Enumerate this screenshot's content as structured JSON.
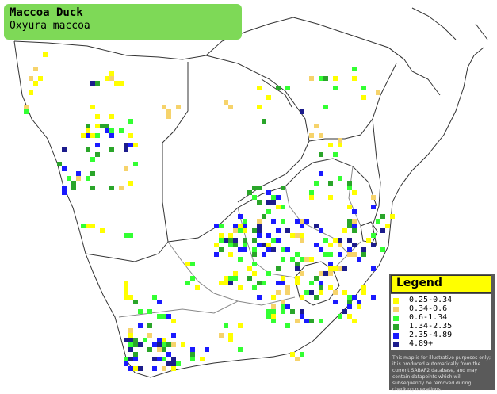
{
  "title": {
    "common_name": "Maccoa Duck",
    "scientific_name": "Oxyura maccoa"
  },
  "legend": {
    "heading": "Legend",
    "classes": [
      {
        "label": "0.25-0.34",
        "color": "#ffff00"
      },
      {
        "label": "0.34-0.6",
        "color": "#f6d36b"
      },
      {
        "label": "0.6-1.34",
        "color": "#33ff33"
      },
      {
        "label": "1.34-2.35",
        "color": "#2aa52a"
      },
      {
        "label": "2.35-4.89",
        "color": "#1a1aff"
      },
      {
        "label": "4.89+",
        "color": "#1c1c8c"
      }
    ],
    "note": "This map is for illustrative purposes only; it is produced automatically from the current SABAP2 database, and may contain datapoints which will subsequently be removed during checking operations."
  },
  "colors": {
    "title_box": "#7ed957",
    "legend_bg": "#5a5a5a",
    "legend_head": "#ffff00",
    "borders": "#000000"
  }
}
